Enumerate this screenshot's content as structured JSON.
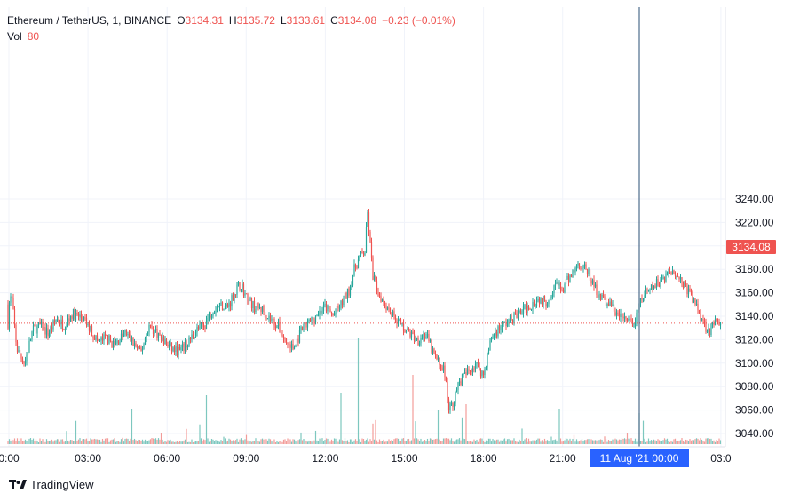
{
  "legend": {
    "symbol": "Ethereum / TetherUS, 1, BINANCE",
    "o_label": "O",
    "o_value": "3134.31",
    "h_label": "H",
    "h_value": "3135.72",
    "l_label": "L",
    "l_value": "3133.61",
    "c_label": "C",
    "c_value": "3134.08",
    "change": "−0.23 (−0.01%)",
    "vol_label": "Vol",
    "vol_value": "80"
  },
  "price_tag": "3134.08",
  "crosshair_time": "11 Aug '21  00:00",
  "brand": "TradingView",
  "colors": {
    "up": "#26a69a",
    "down": "#ef5350",
    "up_volume": "#7dc7bf",
    "down_volume": "#f29c99",
    "crosshair": "#2a4f74",
    "grid": "#f0f3fa",
    "crosshair_label": "#2962ff",
    "last_price_line": "#ef5350"
  },
  "chart_data": {
    "type": "candlestick",
    "symbol": "Ethereum / TetherUS",
    "interval": "1",
    "exchange": "BINANCE",
    "x_ticks": [
      "0:00",
      "03:00",
      "06:00",
      "09:00",
      "12:00",
      "15:00",
      "18:00",
      "21:00",
      "03:0"
    ],
    "y_ticks": [
      3040,
      3060,
      3080,
      3100,
      3120,
      3140,
      3160,
      3180,
      3200,
      3220,
      3240
    ],
    "ylim": [
      3030,
      3250
    ],
    "last_price": 3134.08,
    "crosshair_time": "11 Aug '21  00:00",
    "grid": true,
    "price_path": {
      "hours": [
        0,
        0.1,
        0.3,
        0.6,
        0.9,
        1.2,
        1.5,
        1.8,
        2.1,
        2.4,
        2.8,
        3.1,
        3.4,
        3.7,
        4.0,
        4.4,
        4.7,
        5.0,
        5.3,
        5.6,
        5.9,
        6.2,
        6.5,
        6.8,
        7.1,
        7.4,
        7.7,
        8.0,
        8.3,
        8.6,
        8.8,
        9.0,
        9.3,
        9.6,
        9.9,
        10.2,
        10.5,
        10.8,
        11.1,
        11.4,
        11.7,
        12.0,
        12.3,
        12.6,
        12.9,
        13.1,
        13.3,
        13.5,
        13.6,
        13.8,
        14.0,
        14.3,
        14.6,
        14.9,
        15.2,
        15.5,
        15.8,
        16.1,
        16.3,
        16.5,
        16.7,
        16.9,
        17.1,
        17.4,
        17.7,
        18.0,
        18.3,
        18.6,
        18.9,
        19.2,
        19.5,
        19.8,
        20.1,
        20.4,
        20.7,
        21.0,
        21.3,
        21.6,
        21.9,
        22.2,
        22.5,
        22.8,
        23.1,
        23.4,
        23.7,
        24.0,
        24.3,
        24.6,
        24.9,
        25.2,
        25.5,
        25.8,
        26.1,
        26.4,
        26.6,
        26.8,
        27.0,
        27.2
      ],
      "close": [
        3150,
        3158,
        3112,
        3100,
        3128,
        3132,
        3125,
        3138,
        3132,
        3142,
        3138,
        3128,
        3118,
        3122,
        3115,
        3126,
        3118,
        3108,
        3132,
        3126,
        3118,
        3112,
        3110,
        3118,
        3128,
        3132,
        3145,
        3150,
        3148,
        3162,
        3168,
        3156,
        3148,
        3146,
        3138,
        3132,
        3118,
        3112,
        3128,
        3135,
        3142,
        3148,
        3140,
        3150,
        3162,
        3180,
        3190,
        3195,
        3228,
        3175,
        3160,
        3150,
        3140,
        3132,
        3125,
        3120,
        3125,
        3108,
        3100,
        3095,
        3060,
        3070,
        3085,
        3092,
        3100,
        3090,
        3122,
        3130,
        3135,
        3140,
        3145,
        3150,
        3155,
        3152,
        3168,
        3162,
        3175,
        3185,
        3180,
        3165,
        3155,
        3150,
        3140,
        3138,
        3132,
        3155,
        3162,
        3168,
        3175,
        3180,
        3170,
        3160,
        3148,
        3132,
        3128,
        3135,
        3130,
        3134.08
      ]
    }
  }
}
